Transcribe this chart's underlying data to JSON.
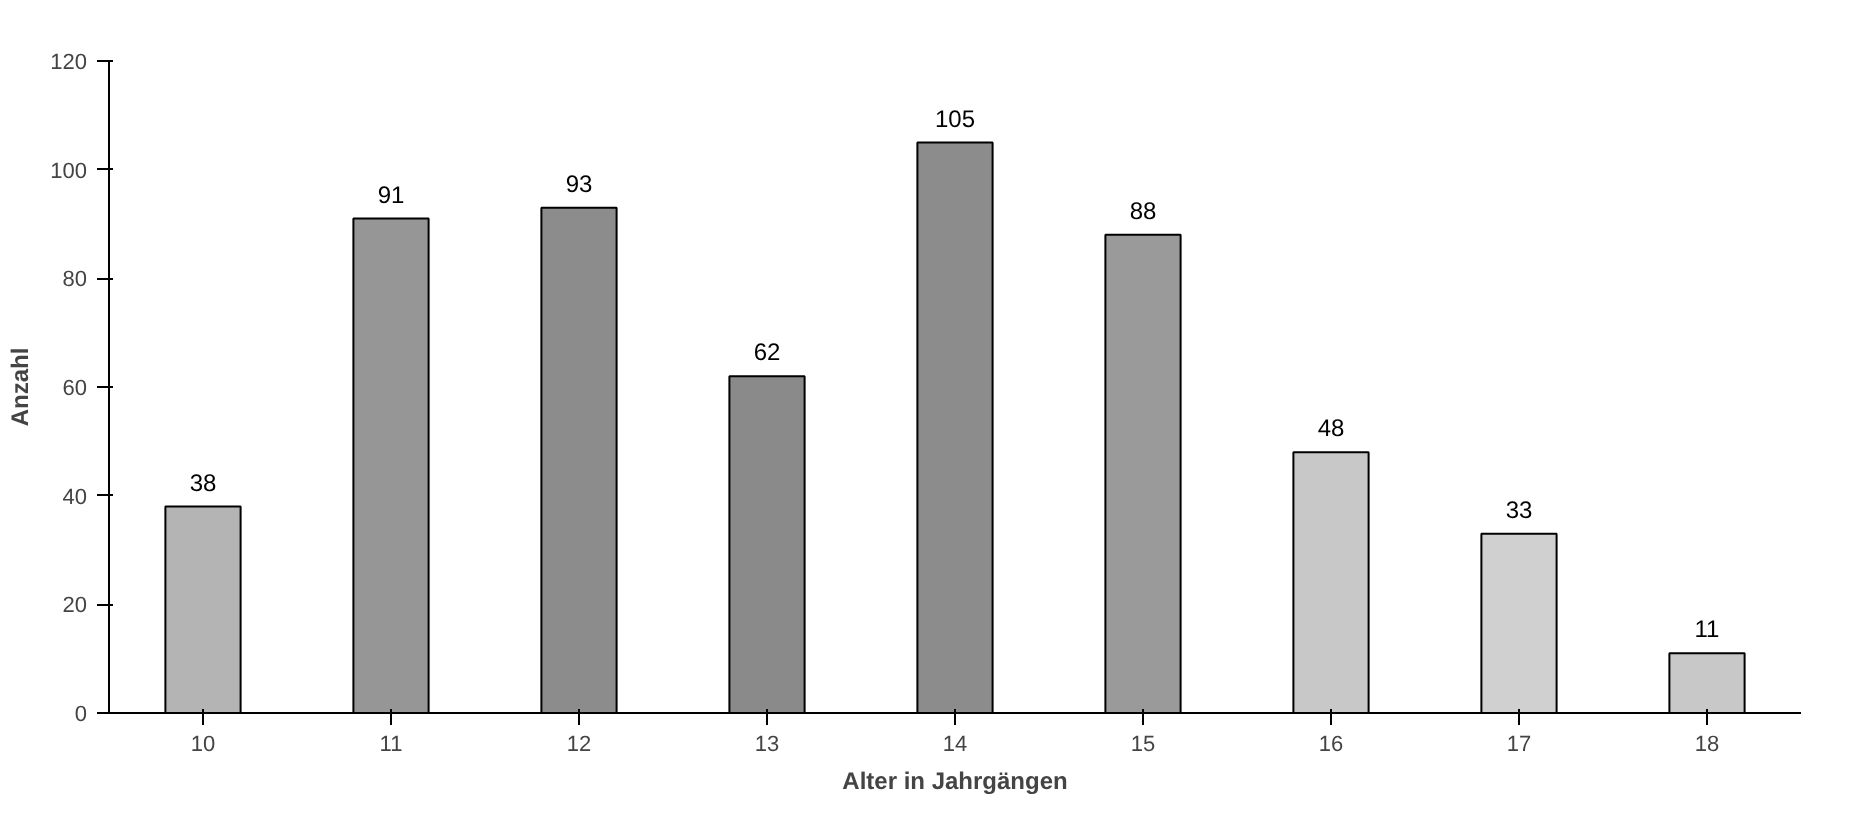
{
  "chart_data": {
    "type": "bar",
    "xlabel": "Alter in Jahrgängen",
    "ylabel": "Anzahl",
    "categories": [
      "10",
      "11",
      "12",
      "13",
      "14",
      "15",
      "16",
      "17",
      "18"
    ],
    "values": [
      38,
      91,
      93,
      62,
      105,
      88,
      48,
      33,
      11
    ],
    "colors": [
      "#b4b4b4",
      "#969696",
      "#8c8c8c",
      "#8a8a8a",
      "#8c8c8c",
      "#9a9a9a",
      "#c8c8c8",
      "#d0d0d0",
      "#c8c8c8"
    ],
    "ylim": [
      0,
      120
    ],
    "yticks": [
      0,
      20,
      40,
      60,
      80,
      100,
      120
    ],
    "data_labels": true,
    "grid": false
  }
}
